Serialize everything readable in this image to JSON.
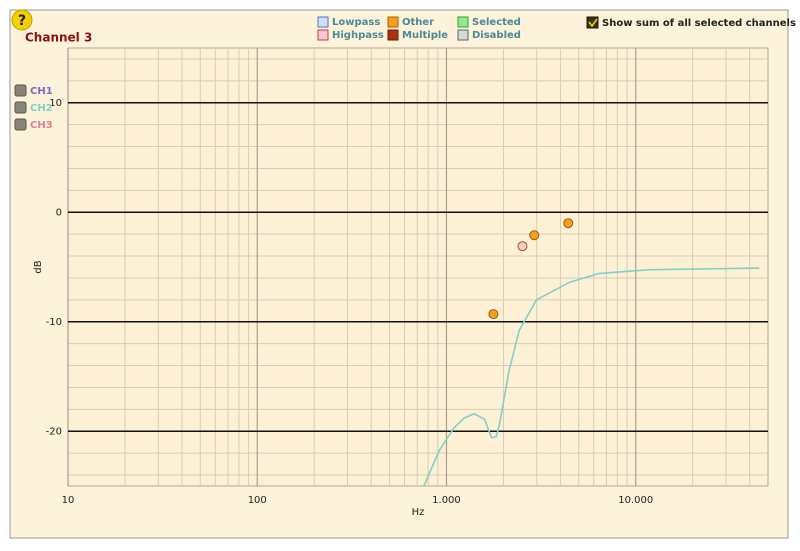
{
  "header": {
    "help_icon": "?",
    "title": "Channel 3"
  },
  "filter_legend": [
    {
      "label": "Lowpass",
      "color": "#cfe0f5",
      "border": "#4a78c0"
    },
    {
      "label": "Highpass",
      "color": "#f8c8cc",
      "border": "#c04050"
    },
    {
      "label": "Other",
      "color": "#f5a020",
      "border": "#b06000"
    },
    {
      "label": "Multiple",
      "color": "#b03010",
      "border": "#701800"
    },
    {
      "label": "Selected",
      "color": "#90e890",
      "border": "#30a030"
    },
    {
      "label": "Disabled",
      "color": "#d8d8d8",
      "border": "#606060"
    }
  ],
  "sum_checkbox": {
    "label": "Show sum of all selected channels",
    "checked": true
  },
  "chart_data": {
    "type": "line",
    "xlabel": "Hz",
    "ylabel": "dB",
    "xscale": "log",
    "xlim": [
      10,
      50000
    ],
    "ylim": [
      -25,
      15
    ],
    "xticks": [
      10,
      100,
      {
        "value": 1000,
        "label": "1.000"
      },
      {
        "value": 10000,
        "label": "10.000"
      }
    ],
    "yticks": [
      -20,
      -10,
      0,
      10
    ],
    "xminorticks": [
      20,
      30,
      40,
      50,
      60,
      70,
      80,
      90,
      200,
      300,
      400,
      500,
      600,
      700,
      800,
      900,
      2000,
      3000,
      4000,
      5000,
      6000,
      7000,
      8000,
      9000,
      20000,
      30000,
      40000
    ],
    "yminorticks": [
      -24,
      -22,
      -18,
      -16,
      -14,
      -12,
      -8,
      -6,
      -4,
      -2,
      2,
      4,
      6,
      8,
      12,
      14
    ],
    "grid": true,
    "series": [
      {
        "name": "CH1",
        "color": "#7b68c8",
        "x": [],
        "values": []
      },
      {
        "name": "CH2",
        "color": "#7fd0c8",
        "x": [
          760,
          913,
          1095,
          1240,
          1400,
          1590,
          1730,
          1830,
          1900,
          2140,
          2420,
          2990,
          4460,
          6370,
          11700,
          45000
        ],
        "values": [
          -25,
          -21.8,
          -19.7,
          -18.8,
          -18.4,
          -18.9,
          -20.6,
          -20.5,
          -19.5,
          -14.5,
          -10.8,
          -8.0,
          -6.4,
          -5.6,
          -5.25,
          -5.1
        ]
      },
      {
        "name": "CH3",
        "color": "#e08090",
        "x": [],
        "values": []
      }
    ],
    "points": [
      {
        "x": 1770,
        "value": -9.3,
        "color": "#f5a020"
      },
      {
        "x": 2520,
        "value": -3.1,
        "color": "#f8c8cc"
      },
      {
        "x": 2910,
        "value": -2.1,
        "color": "#f5a020"
      },
      {
        "x": 4400,
        "value": -1.0,
        "color": "#f5a020"
      }
    ]
  }
}
